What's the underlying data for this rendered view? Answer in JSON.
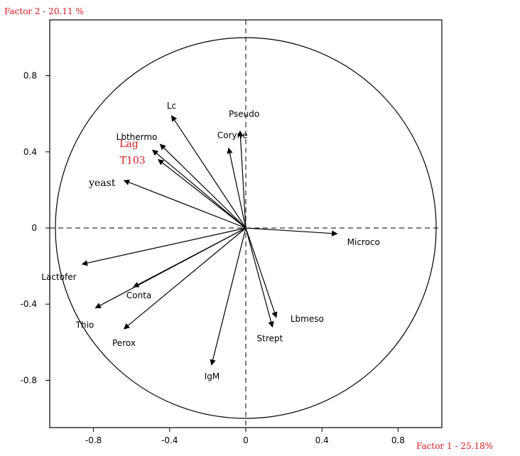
{
  "chart_data": {
    "type": "scatter",
    "subtype": "pca-correlation-circle",
    "xlabel": "Factor 1 - 25.18%",
    "ylabel": "Factor 2 - 20.11 %",
    "xlim": [
      -1.02,
      1.02
    ],
    "ylim": [
      -1.04,
      1.04
    ],
    "x_ticks": [
      "-0.8",
      "-0.4",
      "0",
      "0.4",
      "0.8"
    ],
    "y_ticks": [
      "0.8",
      "0.4",
      "0",
      "-0.4",
      "-0.8"
    ],
    "grid": false,
    "unit_circle": true,
    "label_color_default": "#000000",
    "label_color_highlight": "#d7191c",
    "axis_title_color": "#d7191c",
    "variables": [
      {
        "label": "Lc",
        "x": -0.39,
        "y": 0.59,
        "highlight": false,
        "serif": false
      },
      {
        "label": "Lbthermo",
        "x": -0.45,
        "y": 0.44,
        "highlight": false,
        "serif": false
      },
      {
        "label": "Coryne",
        "x": -0.09,
        "y": 0.42,
        "highlight": false,
        "serif": false
      },
      {
        "label": "Pseudo",
        "x": -0.03,
        "y": 0.51,
        "highlight": false,
        "serif": false
      },
      {
        "label": "Lag",
        "x": -0.49,
        "y": 0.41,
        "highlight": true,
        "serif": true
      },
      {
        "label": "T103",
        "x": -0.46,
        "y": 0.36,
        "highlight": true,
        "serif": true
      },
      {
        "label": "yeast",
        "x": -0.64,
        "y": 0.25,
        "highlight": false,
        "serif": true
      },
      {
        "label": "Micro­co",
        "x": 0.48,
        "y": -0.03,
        "highlight": false,
        "serif": false
      },
      {
        "label": "Lactofer",
        "x": -0.86,
        "y": -0.19,
        "highlight": false,
        "serif": false
      },
      {
        "label": "Conta",
        "x": -0.59,
        "y": -0.31,
        "highlight": false,
        "serif": false
      },
      {
        "label": "Thio",
        "x": -0.79,
        "y": -0.42,
        "highlight": false,
        "serif": false
      },
      {
        "label": "Perox",
        "x": -0.64,
        "y": -0.53,
        "highlight": false,
        "serif": false
      },
      {
        "label": "IgM",
        "x": -0.18,
        "y": -0.72,
        "highlight": false,
        "serif": false
      },
      {
        "label": "Strept",
        "x": 0.14,
        "y": -0.52,
        "highlight": false,
        "serif": false
      },
      {
        "label": "Lbmeso",
        "x": 0.16,
        "y": -0.47,
        "highlight": false,
        "serif": false
      }
    ]
  }
}
